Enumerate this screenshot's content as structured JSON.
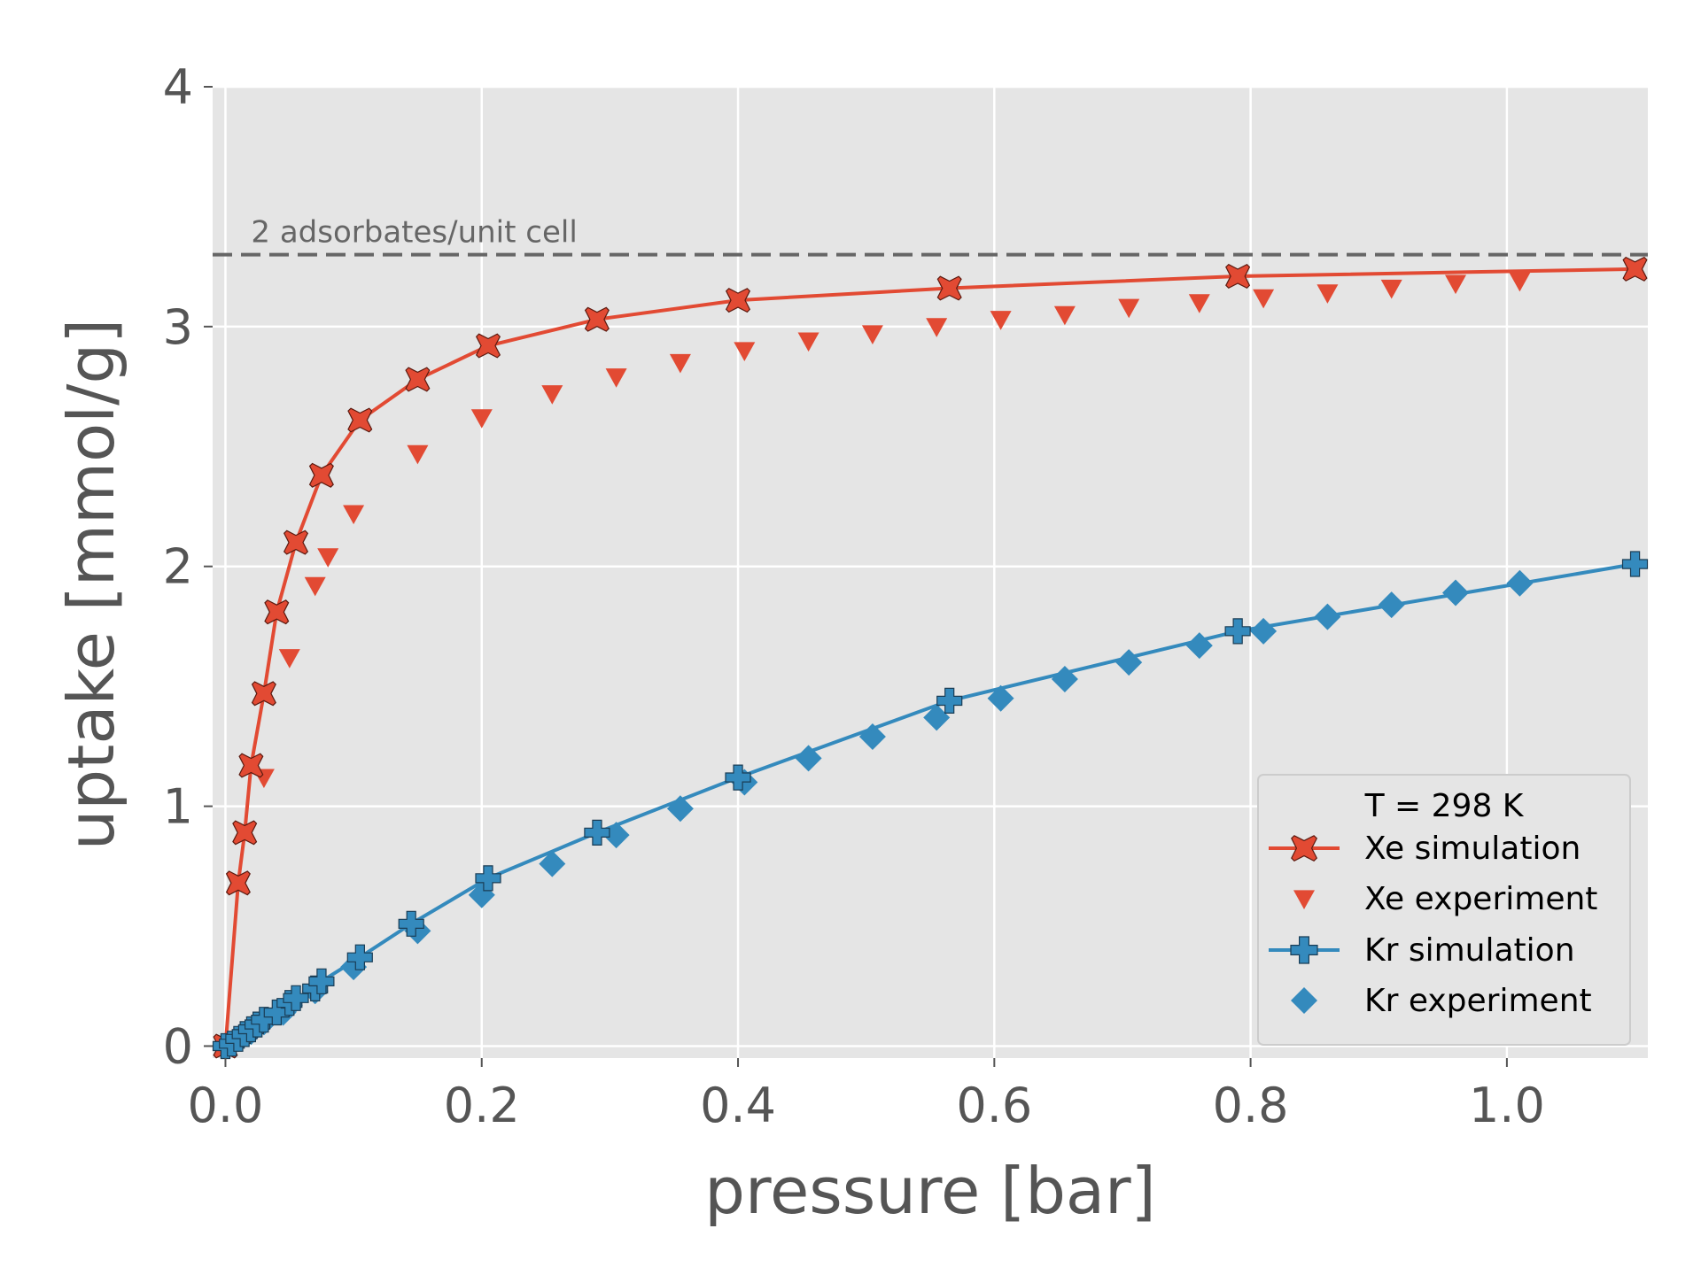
{
  "chart_data": {
    "type": "line",
    "xlabel": "pressure [bar]",
    "ylabel": "uptake [mmol/g]",
    "xlim": [
      -0.01,
      1.11
    ],
    "ylim": [
      -0.05,
      4.0
    ],
    "xticks": [
      0.0,
      0.2,
      0.4,
      0.6,
      0.8,
      1.0
    ],
    "xtick_labels": [
      "0.0",
      "0.2",
      "0.4",
      "0.6",
      "0.8",
      "1.0"
    ],
    "yticks": [
      0,
      1,
      2,
      3,
      4
    ],
    "ytick_labels": [
      "0",
      "1",
      "2",
      "3",
      "4"
    ],
    "grid": true,
    "background": "#E5E5E5",
    "reference_line": {
      "y": 3.3,
      "label": "2 adsorbates/unit cell",
      "color": "#666666",
      "style": "dashed"
    },
    "legend": {
      "title": "T = 298 K",
      "placement": "lower right"
    },
    "series": [
      {
        "name": "Xe simulation",
        "color": "#E24A33",
        "marker": "X",
        "line": true,
        "x": [
          0.0,
          0.01,
          0.015,
          0.02,
          0.03,
          0.04,
          0.055,
          0.075,
          0.105,
          0.15,
          0.205,
          0.29,
          0.4,
          0.565,
          0.79,
          1.1
        ],
        "y": [
          0.0,
          0.68,
          0.89,
          1.17,
          1.47,
          1.81,
          2.1,
          2.38,
          2.61,
          2.78,
          2.92,
          3.03,
          3.11,
          3.16,
          3.21,
          3.24
        ]
      },
      {
        "name": "Xe experiment",
        "color": "#E24A33",
        "marker": "v",
        "line": false,
        "x": [
          0.0,
          0.03,
          0.05,
          0.07,
          0.08,
          0.1,
          0.15,
          0.2,
          0.255,
          0.305,
          0.355,
          0.405,
          0.455,
          0.505,
          0.555,
          0.605,
          0.655,
          0.705,
          0.76,
          0.81,
          0.86,
          0.91,
          0.96,
          1.01
        ],
        "y": [
          0.0,
          1.12,
          1.62,
          1.92,
          2.04,
          2.22,
          2.47,
          2.62,
          2.72,
          2.79,
          2.85,
          2.9,
          2.94,
          2.97,
          3.0,
          3.03,
          3.05,
          3.08,
          3.1,
          3.12,
          3.14,
          3.16,
          3.18,
          3.19
        ]
      },
      {
        "name": "Kr simulation",
        "color": "#348ABD",
        "marker": "P",
        "line": true,
        "x": [
          0.0,
          0.005,
          0.01,
          0.015,
          0.02,
          0.025,
          0.03,
          0.04,
          0.05,
          0.055,
          0.07,
          0.075,
          0.105,
          0.145,
          0.205,
          0.29,
          0.4,
          0.565,
          0.79,
          1.1
        ],
        "y": [
          0.0,
          0.01,
          0.03,
          0.05,
          0.07,
          0.09,
          0.11,
          0.14,
          0.18,
          0.2,
          0.24,
          0.27,
          0.37,
          0.51,
          0.7,
          0.89,
          1.12,
          1.44,
          1.73,
          2.01
        ]
      },
      {
        "name": "Kr experiment",
        "color": "#348ABD",
        "marker": "D",
        "line": false,
        "x": [
          0.0,
          0.01,
          0.02,
          0.03,
          0.045,
          0.05,
          0.07,
          0.1,
          0.15,
          0.2,
          0.255,
          0.305,
          0.355,
          0.405,
          0.455,
          0.505,
          0.555,
          0.605,
          0.655,
          0.705,
          0.76,
          0.81,
          0.86,
          0.91,
          0.96,
          1.01
        ],
        "y": [
          0.0,
          0.03,
          0.06,
          0.1,
          0.14,
          0.17,
          0.23,
          0.33,
          0.48,
          0.63,
          0.76,
          0.88,
          0.99,
          1.1,
          1.2,
          1.29,
          1.37,
          1.45,
          1.53,
          1.6,
          1.67,
          1.73,
          1.79,
          1.84,
          1.89,
          1.93
        ]
      }
    ]
  }
}
